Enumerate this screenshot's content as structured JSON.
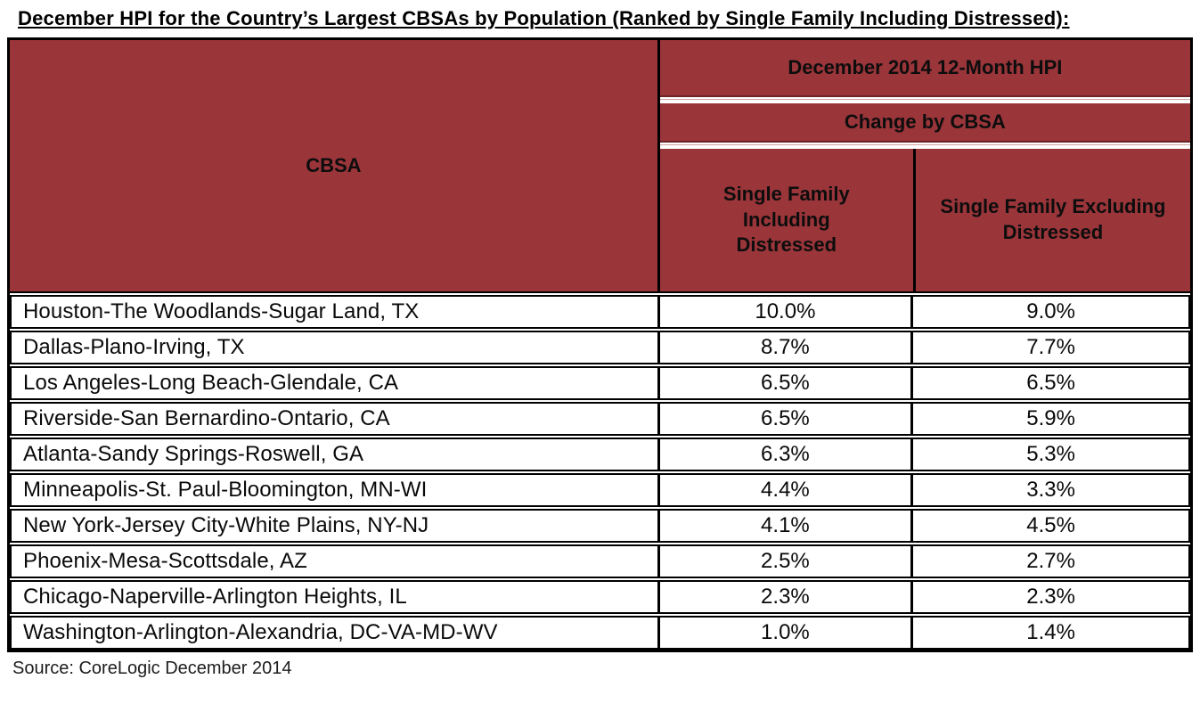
{
  "title": "December HPI for the Country’s Largest CBSAs by Population (Ranked by Single Family Including Distressed):",
  "table": {
    "corner_header": "CBSA",
    "group_header": "December 2014 12-Month HPI",
    "subgroup_header": "Change by CBSA",
    "columns": [
      "Single Family Including Distressed",
      "Single Family Excluding Distressed"
    ],
    "rows": [
      {
        "cbsa": "Houston-The Woodlands-Sugar Land, TX",
        "including": "10.0%",
        "excluding": "9.0%"
      },
      {
        "cbsa": "Dallas-Plano-Irving, TX",
        "including": "8.7%",
        "excluding": "7.7%"
      },
      {
        "cbsa": "Los Angeles-Long Beach-Glendale, CA",
        "including": "6.5%",
        "excluding": "6.5%"
      },
      {
        "cbsa": "Riverside-San Bernardino-Ontario, CA",
        "including": "6.5%",
        "excluding": "5.9%"
      },
      {
        "cbsa": "Atlanta-Sandy Springs-Roswell, GA",
        "including": "6.3%",
        "excluding": "5.3%"
      },
      {
        "cbsa": "Minneapolis-St. Paul-Bloomington, MN-WI",
        "including": "4.4%",
        "excluding": "3.3%"
      },
      {
        "cbsa": "New York-Jersey City-White Plains, NY-NJ",
        "including": "4.1%",
        "excluding": "4.5%"
      },
      {
        "cbsa": "Phoenix-Mesa-Scottsdale, AZ",
        "including": "2.5%",
        "excluding": "2.7%"
      },
      {
        "cbsa": "Chicago-Naperville-Arlington Heights, IL",
        "including": "2.3%",
        "excluding": "2.3%"
      },
      {
        "cbsa": "Washington-Arlington-Alexandria, DC-VA-MD-WV",
        "including": "1.0%",
        "excluding": "1.4%"
      }
    ]
  },
  "source": "Source: CoreLogic December 2014",
  "colors": {
    "header_bg": "#9a353a",
    "border_color": "#000000",
    "divider_dark": "#6d2429",
    "divider_mid": "#d2a3a3"
  }
}
